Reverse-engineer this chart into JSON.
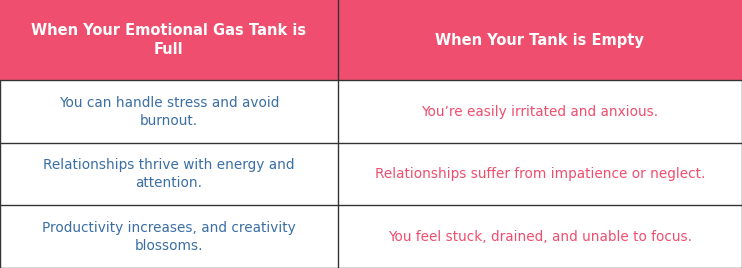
{
  "header_bg_color": "#F04E6E",
  "header_text_color": "#FFFFFF",
  "cell_bg_color": "#FFFFFF",
  "border_color": "#333333",
  "left_text_color": "#3A6EA5",
  "right_text_color": "#F04E6E",
  "header_left": "When Your Emotional Gas Tank is\nFull",
  "header_right": "When Your Tank is Empty",
  "rows": [
    {
      "left": "You can handle stress and avoid\nburnout.",
      "right": "You’re easily irritated and anxious."
    },
    {
      "left": "Relationships thrive with energy and\nattention.",
      "right": "Relationships suffer from impatience or neglect."
    },
    {
      "left": "Productivity increases, and creativity\nblossoms.",
      "right": "You feel stuck, drained, and unable to focus."
    }
  ],
  "col_split": 0.455,
  "header_fontsize": 10.5,
  "cell_fontsize": 9.8,
  "fig_width": 7.42,
  "fig_height": 2.68,
  "dpi": 100
}
